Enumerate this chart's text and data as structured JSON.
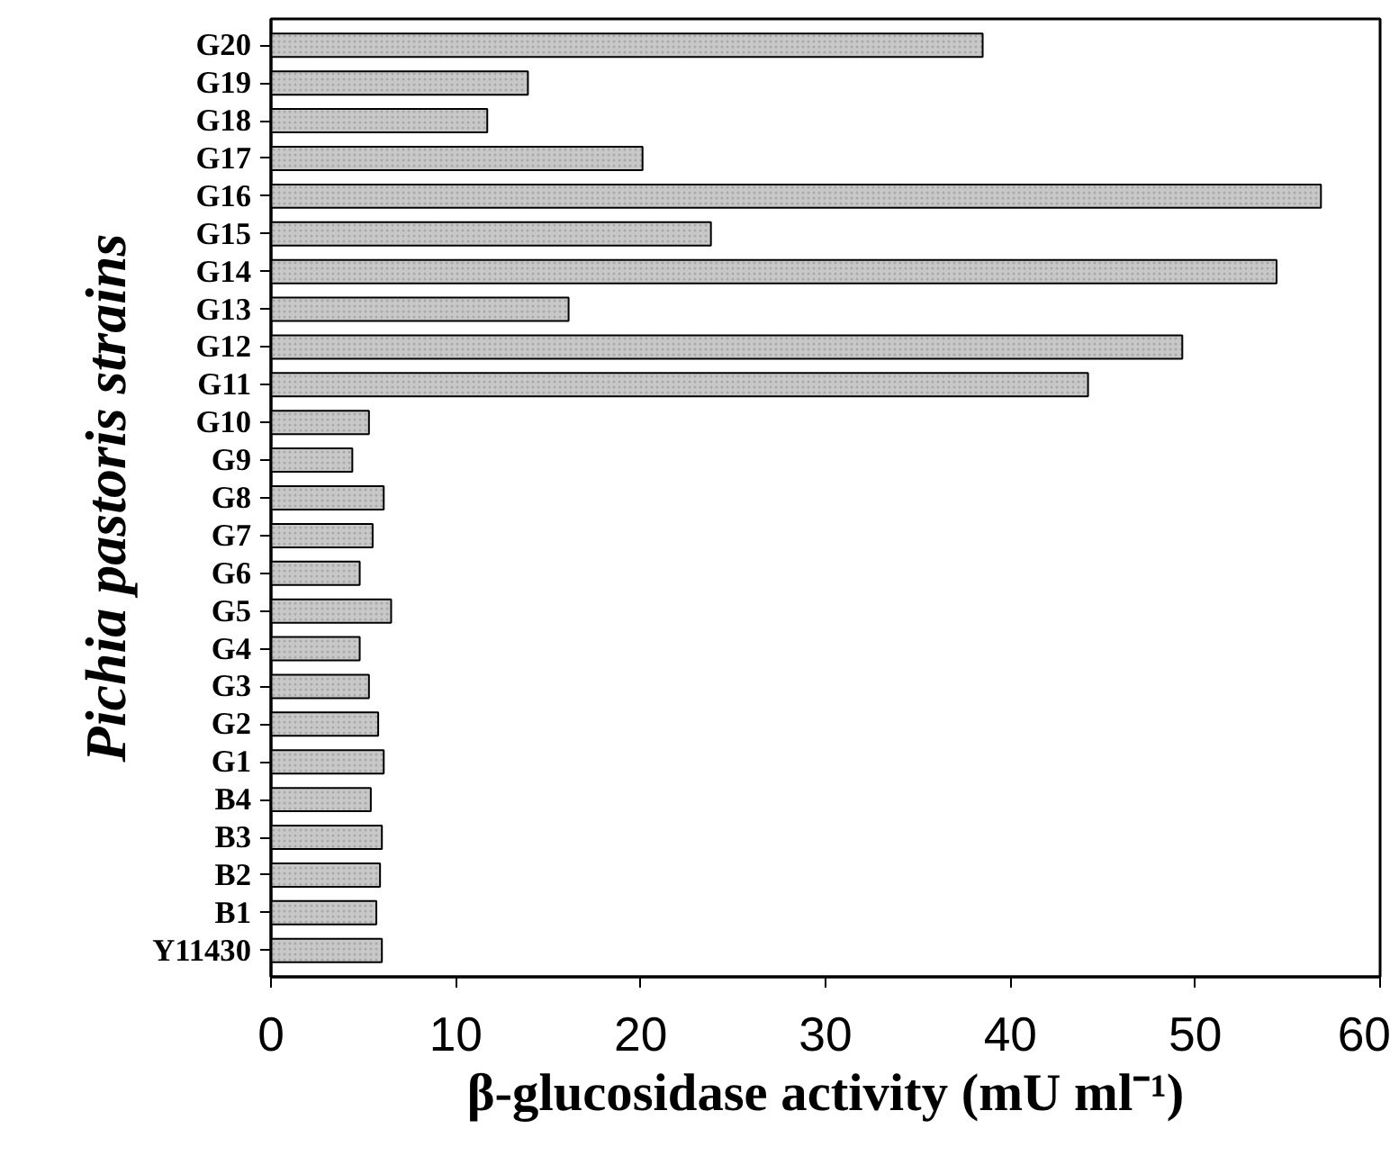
{
  "chart_data": {
    "type": "bar",
    "orientation": "horizontal",
    "xlabel": "β-glucosidase activity (mU ml⁻¹)",
    "ylabel": "Pichia pastoris strains",
    "categories": [
      "G20",
      "G19",
      "G18",
      "G17",
      "G16",
      "G15",
      "G14",
      "G13",
      "G12",
      "G11",
      "G10",
      "G9",
      "G8",
      "G7",
      "G6",
      "G5",
      "G4",
      "G3",
      "G2",
      "G1",
      "B4",
      "B3",
      "B2",
      "B1",
      "Y11430"
    ],
    "values": [
      38.5,
      13.9,
      11.7,
      20.1,
      56.8,
      23.8,
      54.4,
      16.1,
      49.3,
      44.2,
      5.3,
      4.4,
      6.1,
      5.5,
      4.8,
      6.5,
      4.8,
      5.3,
      5.8,
      6.1,
      5.4,
      6.0,
      5.9,
      5.7,
      6.0
    ],
    "color": "#c8c8c8",
    "xlim": [
      0,
      60
    ],
    "xticks": [
      0,
      10,
      20,
      30,
      40,
      50,
      60
    ],
    "grid": false
  }
}
